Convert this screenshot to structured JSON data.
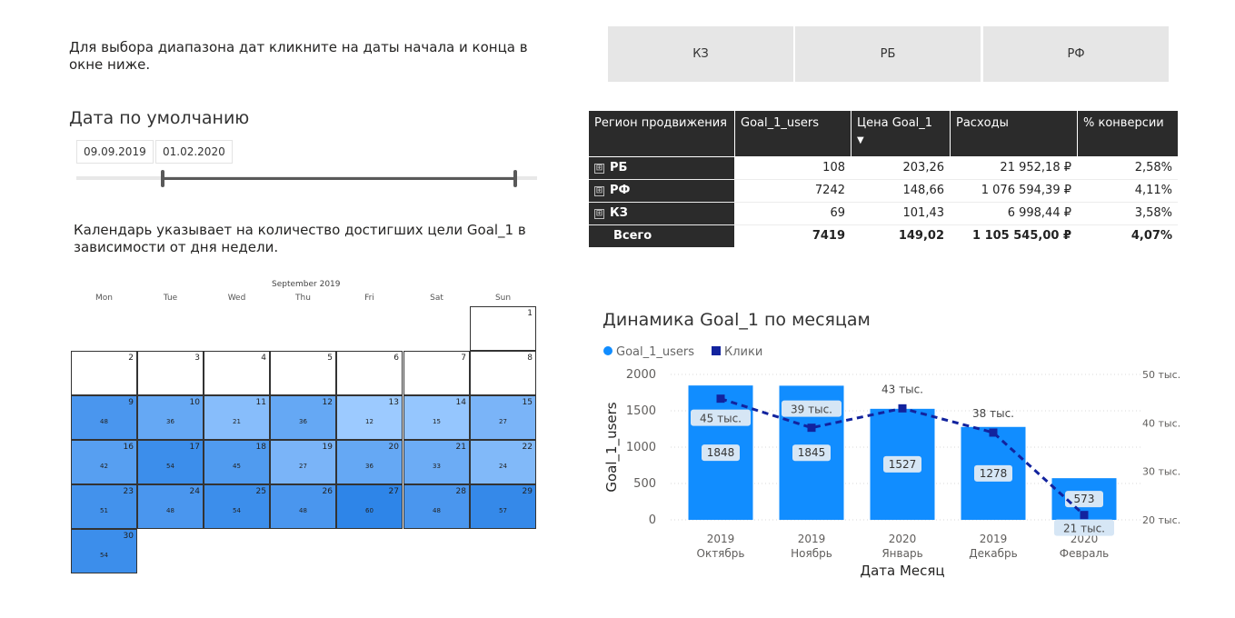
{
  "instructions": "Для выбора диапазона дат кликните на даты начала и конца в окне ниже.",
  "date_slicer": {
    "title": "Дата по умолчанию",
    "start": "09.09.2019",
    "end": "01.02.2020"
  },
  "calendar": {
    "note": "Календарь указывает на количество достигших цели Goal_1 в зависимости от дня недели.",
    "month": "September 2019",
    "weekdays": [
      "Mon",
      "Tue",
      "Wed",
      "Thu",
      "Fri",
      "Sat",
      "Sun"
    ],
    "days": [
      {
        "day": "1",
        "value": ""
      },
      {
        "day": "2",
        "value": ""
      },
      {
        "day": "3",
        "value": ""
      },
      {
        "day": "4",
        "value": ""
      },
      {
        "day": "5",
        "value": ""
      },
      {
        "day": "6",
        "value": ""
      },
      {
        "day": "7",
        "value": ""
      },
      {
        "day": "8",
        "value": ""
      },
      {
        "day": "9",
        "value": "48"
      },
      {
        "day": "10",
        "value": "36"
      },
      {
        "day": "11",
        "value": "21"
      },
      {
        "day": "12",
        "value": "36"
      },
      {
        "day": "13",
        "value": "12"
      },
      {
        "day": "14",
        "value": "15"
      },
      {
        "day": "15",
        "value": "27"
      },
      {
        "day": "16",
        "value": "42"
      },
      {
        "day": "17",
        "value": "54"
      },
      {
        "day": "18",
        "value": "45"
      },
      {
        "day": "19",
        "value": "27"
      },
      {
        "day": "20",
        "value": "36"
      },
      {
        "day": "21",
        "value": "33"
      },
      {
        "day": "22",
        "value": "24"
      },
      {
        "day": "23",
        "value": "51"
      },
      {
        "day": "24",
        "value": "48"
      },
      {
        "day": "25",
        "value": "54"
      },
      {
        "day": "26",
        "value": "48"
      },
      {
        "day": "27",
        "value": "60"
      },
      {
        "day": "28",
        "value": "48"
      },
      {
        "day": "29",
        "value": "57"
      },
      {
        "day": "30",
        "value": "54"
      }
    ]
  },
  "region_buttons": [
    "КЗ",
    "РБ",
    "РФ"
  ],
  "table": {
    "headers": [
      "Регион продвижения",
      "Goal_1_users",
      "Цена Goal_1",
      "Расходы",
      "% конверсии"
    ],
    "sort_indicator": "▼",
    "expand_symbol": "⊞",
    "rows": [
      {
        "region": "РБ",
        "users": "108",
        "price": "203,26",
        "cost": "21 952,18 ₽",
        "conv": "2,58%"
      },
      {
        "region": "РФ",
        "users": "7242",
        "price": "148,66",
        "cost": "1 076 594,39 ₽",
        "conv": "4,11%"
      },
      {
        "region": "КЗ",
        "users": "69",
        "price": "101,43",
        "cost": "6 998,44 ₽",
        "conv": "3,58%"
      }
    ],
    "total": {
      "region": "Всего",
      "users": "7419",
      "price": "149,02",
      "cost": "1 105 545,00 ₽",
      "conv": "4,07%"
    }
  },
  "chart_data": {
    "type": "bar",
    "title": "Динамика Goal_1 по месяцам",
    "xlabel": "Дата Месяц",
    "ylabel": "Goal_1_users",
    "categories": [
      {
        "year": "2019",
        "month": "Октябрь"
      },
      {
        "year": "2019",
        "month": "Ноябрь"
      },
      {
        "year": "2020",
        "month": "Январь"
      },
      {
        "year": "2019",
        "month": "Декабрь"
      },
      {
        "year": "2020",
        "month": "Февраль"
      }
    ],
    "series": [
      {
        "name": "Goal_1_users",
        "type": "bar",
        "axis": "left",
        "values": [
          1848,
          1845,
          1527,
          1278,
          573
        ],
        "color": "#118dff"
      },
      {
        "name": "Клики",
        "type": "line",
        "axis": "right",
        "values": [
          45000,
          39000,
          43000,
          38000,
          21000
        ],
        "labels": [
          "45 тыс.",
          "39 тыс.",
          "43 тыс.",
          "38 тыс.",
          "21 тыс."
        ],
        "color": "#12239e"
      }
    ],
    "ylim": [
      0,
      2000
    ],
    "y_ticks": [
      "0",
      "500",
      "1000",
      "1500",
      "2000"
    ],
    "y2lim": [
      20000,
      50000
    ],
    "y2_ticks": [
      "20 тыс.",
      "30 тыс.",
      "40 тыс.",
      "50 тыс."
    ],
    "legend_position": "top-left",
    "grid": true
  },
  "colors": {
    "heat_low": "#9ccaff",
    "heat_high": "#3c8ce6",
    "header_bg": "#2b2b2b",
    "button_bg": "#e6e6e6"
  }
}
